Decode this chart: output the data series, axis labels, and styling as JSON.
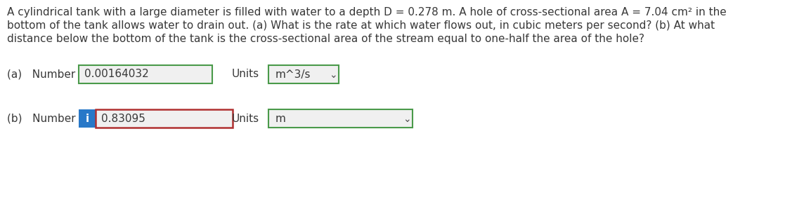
{
  "line1": "A cylindrical tank with a large diameter is filled with water to a depth D = 0.278 m. A hole of cross-sectional area A = 7.04 cm² in the",
  "line2": "bottom of the tank allows water to drain out. (a) What is the rate at which water flows out, in cubic meters per second? (b) At what",
  "line3": "distance below the bottom of the tank is the cross-sectional area of the stream equal to one-half the area of the hole?",
  "part_a_label": "(a)   Number",
  "part_a_value": "0.00164032",
  "part_a_units_label": "Units",
  "part_a_units_value": "m^3/s",
  "part_b_label": "(b)   Number",
  "part_b_value": "0.83095",
  "part_b_units_label": "Units",
  "part_b_units_value": "m",
  "bg_color": "#ffffff",
  "text_color": "#383838",
  "green_border": "#4a9a4a",
  "red_border": "#b03030",
  "blue_fill": "#2878c8",
  "box_fill": "#f0f0f0",
  "label_color": "#606060",
  "font_size": 11.0
}
